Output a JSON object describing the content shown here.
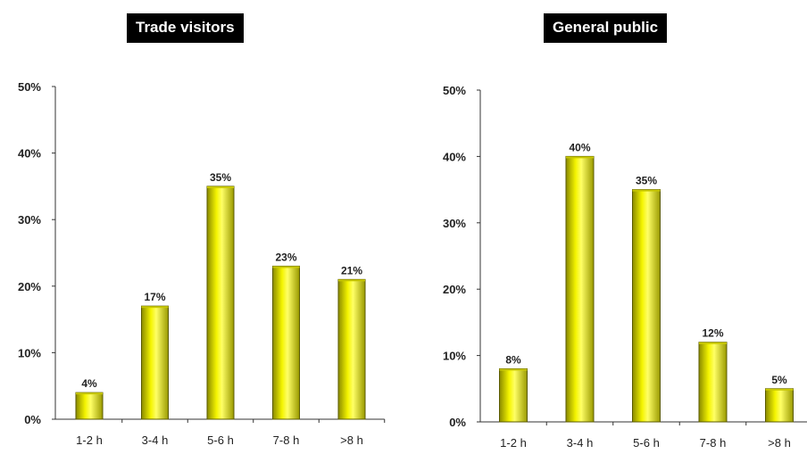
{
  "chart_data": [
    {
      "type": "bar",
      "title": "Trade visitors",
      "categories": [
        "1-2 h",
        "3-4 h",
        "5-6 h",
        "7-8 h",
        ">8 h"
      ],
      "values": [
        4,
        17,
        35,
        23,
        21
      ],
      "data_labels": [
        "4%",
        "17%",
        "35%",
        "23%",
        "21%"
      ],
      "y_ticks": [
        "0%",
        "10%",
        "20%",
        "30%",
        "40%",
        "50%"
      ],
      "ylim": [
        0,
        50
      ],
      "grid": false,
      "bar_color": "#e6e600"
    },
    {
      "type": "bar",
      "title": "General public",
      "categories": [
        "1-2 h",
        "3-4 h",
        "5-6 h",
        "7-8 h",
        ">8 h"
      ],
      "values": [
        8,
        40,
        35,
        12,
        5
      ],
      "data_labels": [
        "8%",
        "40%",
        "35%",
        "12%",
        "5%"
      ],
      "y_ticks": [
        "0%",
        "10%",
        "20%",
        "30%",
        "40%",
        "50%"
      ],
      "ylim": [
        0,
        50
      ],
      "grid": false,
      "bar_color": "#e6e600"
    }
  ]
}
